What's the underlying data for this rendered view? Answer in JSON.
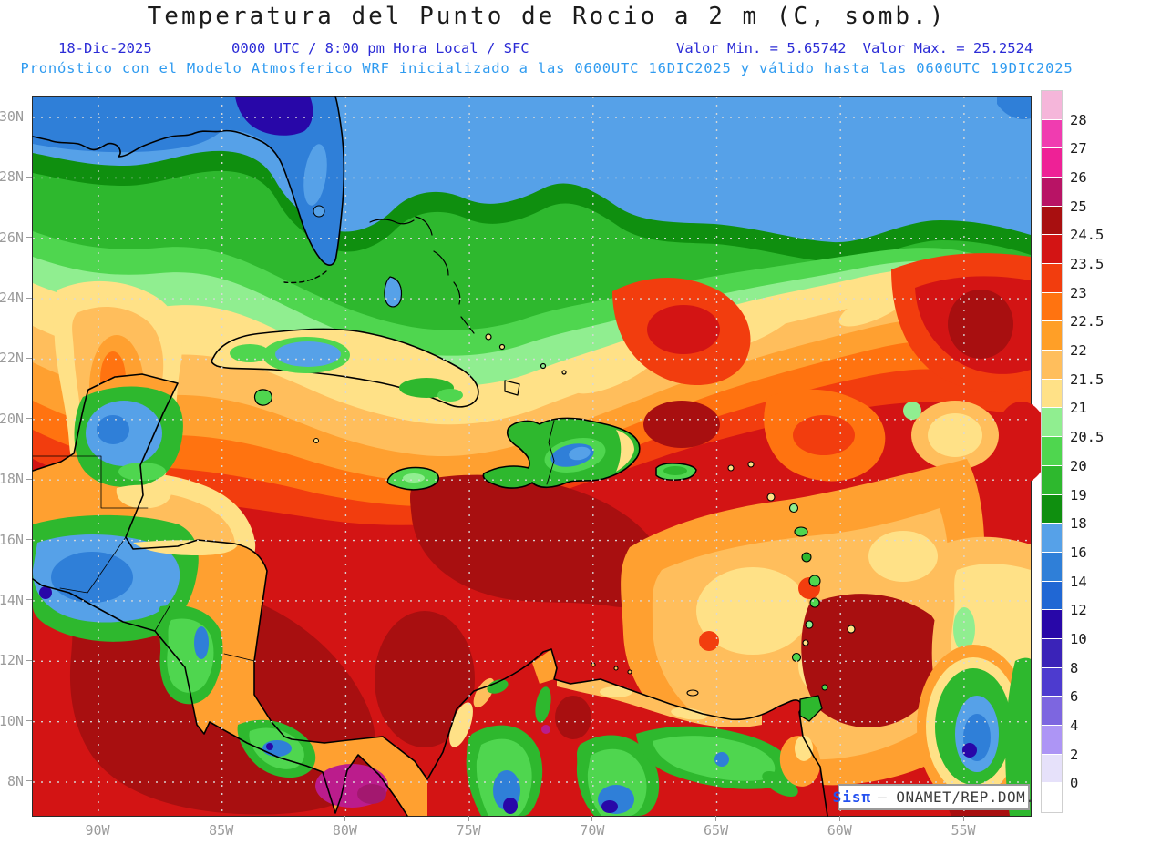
{
  "header": {
    "title": "Temperatura del Punto de Rocio a 2 m (C, somb.)",
    "date": "18-Dic-2025",
    "time_info": "0000 UTC / 8:00 pm Hora Local / SFC",
    "value_min": "Valor Min. = 5.65742",
    "value_max": "Valor Max. = 25.2524",
    "model_info": "Pronóstico con el Modelo Atmosferico WRF inicializado a las 0600UTC_16DIC2025 y válido hasta las 0600UTC_19DIC2025"
  },
  "axes": {
    "lat_labels": [
      "30N",
      "28N",
      "26N",
      "24N",
      "22N",
      "20N",
      "18N",
      "16N",
      "14N",
      "12N",
      "10N",
      "8N"
    ],
    "lon_labels": [
      "90W",
      "85W",
      "80W",
      "75W",
      "70W",
      "65W",
      "60W",
      "55W"
    ]
  },
  "legend": {
    "units": "C",
    "segments": [
      {
        "color": "#f5b6da",
        "label": "28"
      },
      {
        "color": "#f03cb0",
        "label": "27"
      },
      {
        "color": "#ee2196",
        "label": "26"
      },
      {
        "color": "#b81365",
        "label": "25"
      },
      {
        "color": "#a80f10",
        "label": "24.5"
      },
      {
        "color": "#d31414",
        "label": "23.5"
      },
      {
        "color": "#f23d0e",
        "label": "23"
      },
      {
        "color": "#ff7310",
        "label": "22.5"
      },
      {
        "color": "#ff9f27",
        "label": "22"
      },
      {
        "color": "#ffbe5c",
        "label": "21.5"
      },
      {
        "color": "#ffe187",
        "label": "21"
      },
      {
        "color": "#90ee90",
        "label": "20.5"
      },
      {
        "color": "#4fd64f",
        "label": "20"
      },
      {
        "color": "#2eb82e",
        "label": "19"
      },
      {
        "color": "#0f8f0f",
        "label": "18"
      },
      {
        "color": "#56a1e8",
        "label": "16"
      },
      {
        "color": "#2f7fd8",
        "label": "14"
      },
      {
        "color": "#2067d4",
        "label": "12"
      },
      {
        "color": "#2807a8",
        "label": "10"
      },
      {
        "color": "#3a23b8",
        "label": "8"
      },
      {
        "color": "#4d3bcf",
        "label": "6"
      },
      {
        "color": "#7d66e0",
        "label": "4"
      },
      {
        "color": "#ad95f5",
        "label": "2"
      },
      {
        "color": "#e6e1fa",
        "label": "0"
      },
      {
        "color": "#ffffff",
        "label": null
      }
    ]
  },
  "attribution": {
    "brand": "Sisπ",
    "rest": "– ONAMET/REP.DOM."
  }
}
